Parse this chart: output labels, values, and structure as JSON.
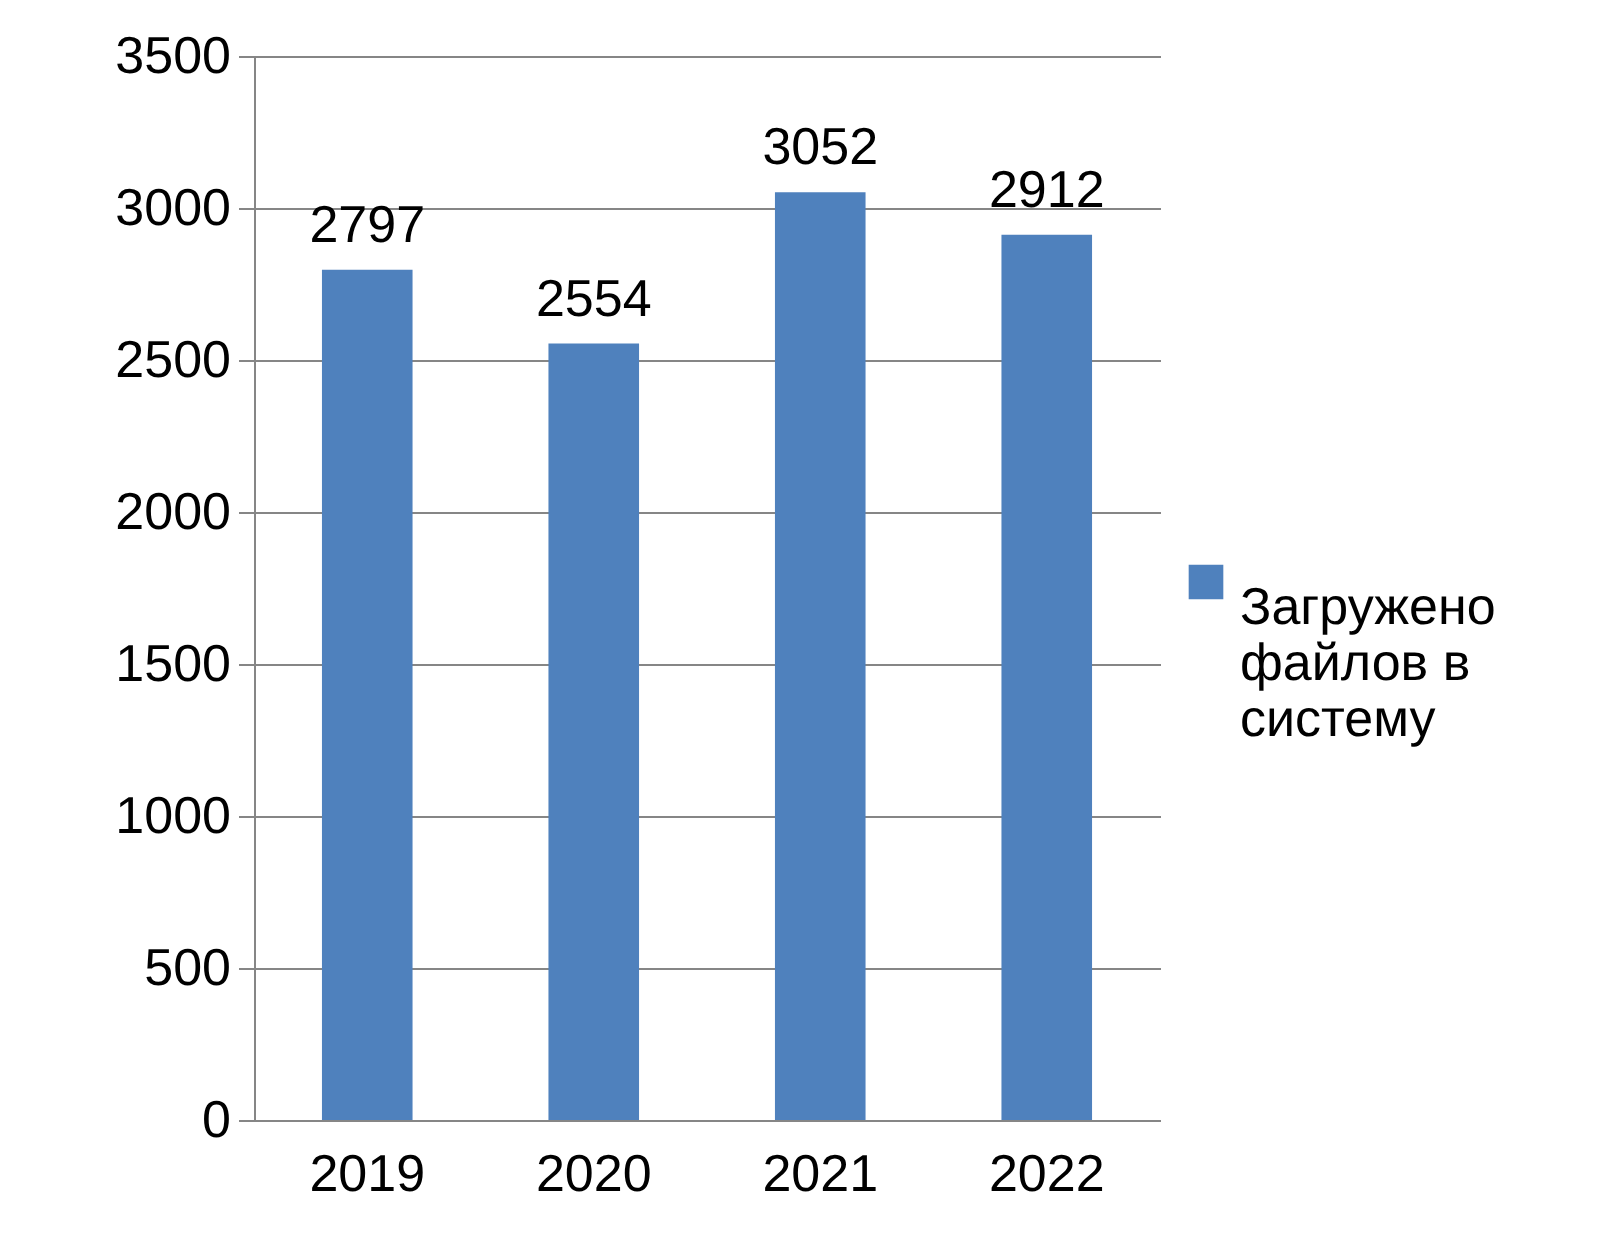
{
  "chart_data": {
    "type": "bar",
    "categories": [
      "2019",
      "2020",
      "2021",
      "2022"
    ],
    "series": [
      {
        "name": "Загружено файлов в систему",
        "color": "#4f81bd",
        "values": [
          2797,
          2554,
          3052,
          2912
        ]
      }
    ],
    "ylim": [
      0,
      3500
    ],
    "yticks": [
      0,
      500,
      1000,
      1500,
      2000,
      2500,
      3000,
      3500
    ],
    "grid": "y",
    "legend": "right",
    "data_labels": true
  }
}
